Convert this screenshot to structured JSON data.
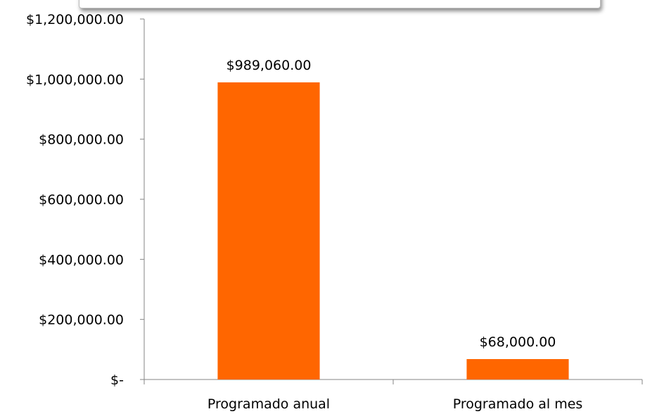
{
  "chart_data": {
    "type": "bar",
    "categories": [
      "Programado anual",
      "Programado al mes"
    ],
    "values": [
      989060,
      68000
    ],
    "data_labels": [
      "$989,060.00",
      "$68,000.00"
    ],
    "ylim": [
      0,
      1200000
    ],
    "y_ticks": [
      0,
      200000,
      400000,
      600000,
      800000,
      1000000,
      1200000
    ],
    "y_tick_labels": [
      "$-",
      "$200,000.00",
      "$400,000.00",
      "$600,000.00",
      "$800,000.00",
      "$1,000,000.00",
      "$1,200,000.00"
    ],
    "bar_color": "#ff6600",
    "grid": false,
    "legend": "none",
    "title": "",
    "xlabel": "",
    "ylabel": ""
  }
}
